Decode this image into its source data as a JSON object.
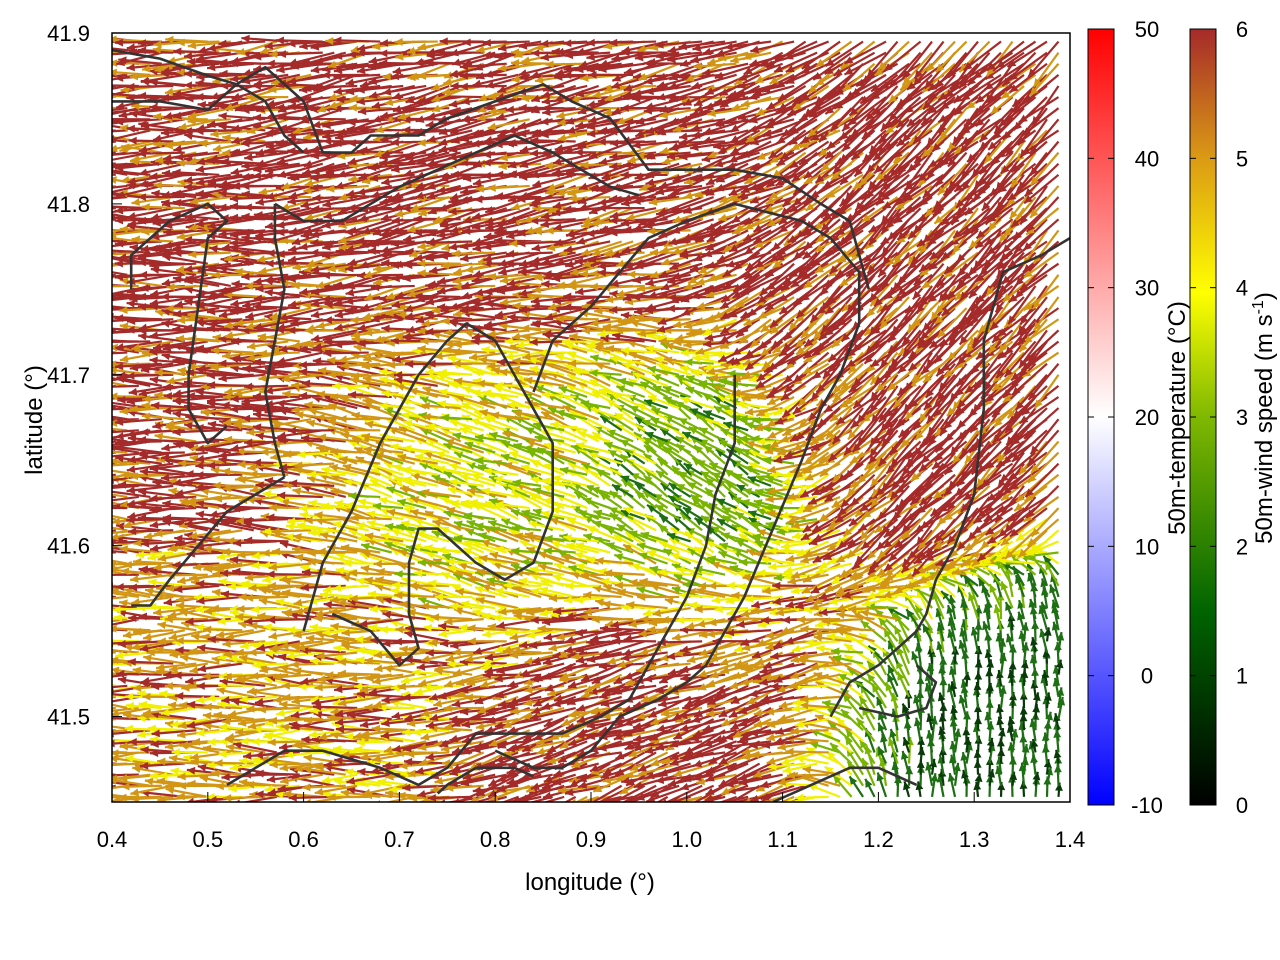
{
  "chart_data": {
    "type": "vector-field-map",
    "xlabel": "longitude (°)",
    "ylabel": "latitude (°)",
    "xlim": [
      0.4,
      1.4
    ],
    "ylim": [
      41.45,
      41.9
    ],
    "x_ticks": [
      0.4,
      0.5,
      0.6,
      0.7,
      0.8,
      0.9,
      1.0,
      1.1,
      1.2,
      1.3,
      1.4
    ],
    "x_tick_labels": [
      "0.4",
      "0.5",
      "0.6",
      "0.7",
      "0.8",
      "0.9",
      "1.0",
      "1.1",
      "1.2",
      "1.3",
      "1.4"
    ],
    "y_ticks": [
      41.5,
      41.6,
      41.7,
      41.8,
      41.9
    ],
    "y_tick_labels": [
      "41.5",
      "41.6",
      "41.7",
      "41.8",
      "41.9"
    ],
    "grid": false,
    "colorbars": [
      {
        "name": "temperature",
        "label": "50m-temperature (°C)",
        "range": [
          -10,
          50
        ],
        "ticks": [
          -10,
          0,
          10,
          20,
          30,
          40,
          50
        ],
        "tick_labels": [
          "-10",
          "0",
          "10",
          "20",
          "30",
          "40",
          "50"
        ],
        "colors": [
          "#0000ff",
          "#ffffff",
          "#ff0000"
        ]
      },
      {
        "name": "wind_speed",
        "label": "50m-wind speed (m s-1)",
        "range": [
          0,
          6
        ],
        "ticks": [
          0,
          1,
          2,
          3,
          4,
          5,
          6
        ],
        "tick_labels": [
          "0",
          "1",
          "2",
          "3",
          "4",
          "5",
          "6"
        ],
        "colors": [
          "#000000",
          "#006400",
          "#7fb800",
          "#ffff00",
          "#dc9c14",
          "#a52a2a"
        ]
      }
    ],
    "wind_field": {
      "speed_colors": {
        "calm": "#0a3a0a",
        "low": "#1e6e14",
        "mid_low": "#78b400",
        "mid": "#f0f000",
        "mid_high": "#d29614",
        "high": "#a52a2a"
      },
      "regions": [
        {
          "name": "west_plain",
          "lon": [
            0.4,
            0.6
          ],
          "lat": [
            41.62,
            41.8
          ],
          "dir_deg": 180,
          "speed": 6
        },
        {
          "name": "north_plateau",
          "lon": [
            0.6,
            1.05
          ],
          "lat": [
            41.72,
            41.85
          ],
          "dir_deg": 190,
          "speed": 6
        },
        {
          "name": "east_valley",
          "lon": [
            1.1,
            1.35
          ],
          "lat": [
            41.6,
            41.8
          ],
          "dir_deg": 225,
          "speed": 6
        },
        {
          "name": "central_basin",
          "lon": [
            0.7,
            1.0
          ],
          "lat": [
            41.58,
            41.7
          ],
          "dir_deg": 160,
          "speed": 4
        },
        {
          "name": "calm_center",
          "lon": [
            0.95,
            1.1
          ],
          "lat": [
            41.58,
            41.68
          ],
          "dir_deg": 130,
          "speed": 2
        },
        {
          "name": "southeast_calm",
          "lon": [
            1.22,
            1.4
          ],
          "lat": [
            41.45,
            41.55
          ],
          "dir_deg": 90,
          "speed": 1.5
        },
        {
          "name": "southwest_flow",
          "lon": [
            0.4,
            0.7
          ],
          "lat": [
            41.45,
            41.6
          ],
          "dir_deg": 180,
          "speed": 5
        },
        {
          "name": "south_ridge",
          "lon": [
            0.85,
            1.15
          ],
          "lat": [
            41.47,
            41.58
          ],
          "dir_deg": 200,
          "speed": 6
        }
      ]
    },
    "contours": [
      {
        "name": "contour-west",
        "points": [
          [
            0.42,
            41.75
          ],
          [
            0.42,
            41.77
          ],
          [
            0.46,
            41.79
          ],
          [
            0.5,
            41.8
          ],
          [
            0.52,
            41.79
          ],
          [
            0.5,
            41.78
          ],
          [
            0.49,
            41.74
          ],
          [
            0.48,
            41.7
          ],
          [
            0.48,
            41.68
          ],
          [
            0.5,
            41.66
          ],
          [
            0.52,
            41.67
          ]
        ]
      },
      {
        "name": "contour-northwest",
        "points": [
          [
            0.4,
            41.86
          ],
          [
            0.45,
            41.86
          ],
          [
            0.5,
            41.855
          ],
          [
            0.53,
            41.87
          ],
          [
            0.56,
            41.86
          ],
          [
            0.58,
            41.84
          ],
          [
            0.6,
            41.83
          ]
        ]
      },
      {
        "name": "contour-northwest-2",
        "points": [
          [
            0.4,
            41.89
          ],
          [
            0.45,
            41.885
          ],
          [
            0.5,
            41.875
          ],
          [
            0.53,
            41.87
          ],
          [
            0.56,
            41.88
          ],
          [
            0.6,
            41.86
          ],
          [
            0.62,
            41.83
          ],
          [
            0.65,
            41.83
          ],
          [
            0.67,
            41.84
          ],
          [
            0.7,
            41.84
          ],
          [
            0.72,
            41.84
          ],
          [
            0.75,
            41.85
          ],
          [
            0.8,
            41.86
          ],
          [
            0.85,
            41.87
          ],
          [
            0.88,
            41.86
          ],
          [
            0.92,
            41.85
          ],
          [
            0.96,
            41.82
          ],
          [
            1.0,
            41.82
          ],
          [
            1.05,
            41.82
          ],
          [
            1.1,
            41.815
          ],
          [
            1.14,
            41.8
          ],
          [
            1.17,
            41.79
          ],
          [
            1.19,
            41.75
          ]
        ]
      },
      {
        "name": "contour-inner",
        "points": [
          [
            0.57,
            41.8
          ],
          [
            0.6,
            41.79
          ],
          [
            0.64,
            41.79
          ],
          [
            0.67,
            41.8
          ],
          [
            0.7,
            41.81
          ],
          [
            0.74,
            41.82
          ],
          [
            0.78,
            41.83
          ],
          [
            0.82,
            41.84
          ],
          [
            0.86,
            41.83
          ],
          [
            0.89,
            41.82
          ],
          [
            0.92,
            41.81
          ],
          [
            0.95,
            41.805
          ]
        ]
      },
      {
        "name": "contour-ridge",
        "points": [
          [
            0.57,
            41.8
          ],
          [
            0.57,
            41.78
          ],
          [
            0.58,
            41.75
          ],
          [
            0.57,
            41.72
          ],
          [
            0.56,
            41.69
          ],
          [
            0.57,
            41.66
          ],
          [
            0.58,
            41.64
          ]
        ]
      },
      {
        "name": "contour-basin",
        "points": [
          [
            0.58,
            41.64
          ],
          [
            0.55,
            41.63
          ],
          [
            0.52,
            41.62
          ],
          [
            0.49,
            41.6
          ],
          [
            0.46,
            41.58
          ],
          [
            0.44,
            41.565
          ],
          [
            0.42,
            41.565
          ]
        ]
      },
      {
        "name": "contour-central",
        "points": [
          [
            0.6,
            41.55
          ],
          [
            0.62,
            41.59
          ],
          [
            0.65,
            41.62
          ],
          [
            0.68,
            41.66
          ],
          [
            0.72,
            41.7
          ],
          [
            0.75,
            41.72
          ],
          [
            0.77,
            41.73
          ],
          [
            0.8,
            41.72
          ],
          [
            0.83,
            41.69
          ],
          [
            0.86,
            41.66
          ],
          [
            0.86,
            41.62
          ],
          [
            0.84,
            41.59
          ],
          [
            0.81,
            41.58
          ],
          [
            0.78,
            41.59
          ],
          [
            0.74,
            41.61
          ],
          [
            0.72,
            41.61
          ],
          [
            0.71,
            41.59
          ],
          [
            0.71,
            41.56
          ],
          [
            0.72,
            41.54
          ],
          [
            0.7,
            41.53
          ],
          [
            0.67,
            41.55
          ],
          [
            0.63,
            41.56
          ]
        ]
      },
      {
        "name": "contour-east-lobe",
        "points": [
          [
            0.84,
            41.69
          ],
          [
            0.86,
            41.72
          ],
          [
            0.9,
            41.74
          ],
          [
            0.93,
            41.76
          ],
          [
            0.96,
            41.78
          ],
          [
            1.0,
            41.79
          ],
          [
            1.05,
            41.8
          ],
          [
            1.12,
            41.79
          ],
          [
            1.15,
            41.78
          ],
          [
            1.18,
            41.76
          ],
          [
            1.18,
            41.73
          ],
          [
            1.16,
            41.7
          ],
          [
            1.14,
            41.68
          ],
          [
            1.12,
            41.65
          ],
          [
            1.09,
            41.61
          ],
          [
            1.06,
            41.57
          ],
          [
            1.04,
            41.55
          ],
          [
            1.02,
            41.53
          ],
          [
            1.0,
            41.52
          ],
          [
            0.97,
            41.51
          ],
          [
            0.93,
            41.5
          ],
          [
            0.9,
            41.48
          ],
          [
            0.87,
            41.47
          ],
          [
            0.84,
            41.47
          ],
          [
            0.8,
            41.48
          ]
        ]
      },
      {
        "name": "contour-east-ridge",
        "points": [
          [
            1.05,
            41.7
          ],
          [
            1.05,
            41.66
          ],
          [
            1.03,
            41.63
          ],
          [
            1.02,
            41.6
          ],
          [
            1.0,
            41.57
          ],
          [
            0.98,
            41.55
          ],
          [
            0.96,
            41.53
          ],
          [
            0.94,
            41.51
          ],
          [
            0.91,
            41.5
          ],
          [
            0.87,
            41.49
          ],
          [
            0.82,
            41.49
          ],
          [
            0.78,
            41.49
          ],
          [
            0.75,
            41.47
          ],
          [
            0.72,
            41.46
          ],
          [
            0.68,
            41.47
          ],
          [
            0.65,
            41.475
          ],
          [
            0.62,
            41.48
          ],
          [
            0.58,
            41.48
          ],
          [
            0.55,
            41.47
          ],
          [
            0.52,
            41.46
          ]
        ]
      },
      {
        "name": "contour-far-east",
        "points": [
          [
            1.4,
            41.78
          ],
          [
            1.37,
            41.77
          ],
          [
            1.33,
            41.76
          ],
          [
            1.31,
            41.72
          ],
          [
            1.31,
            41.68
          ],
          [
            1.3,
            41.63
          ],
          [
            1.28,
            41.6
          ],
          [
            1.26,
            41.58
          ],
          [
            1.25,
            41.56
          ],
          [
            1.24,
            41.55
          ],
          [
            1.2,
            41.53
          ],
          [
            1.17,
            41.52
          ],
          [
            1.15,
            41.5
          ]
        ]
      },
      {
        "name": "contour-se-calm",
        "points": [
          [
            1.18,
            41.505
          ],
          [
            1.22,
            41.5
          ],
          [
            1.25,
            41.505
          ],
          [
            1.26,
            41.52
          ],
          [
            1.24,
            41.53
          ]
        ]
      },
      {
        "name": "contour-se-bottom",
        "points": [
          [
            1.09,
            41.45
          ],
          [
            1.13,
            41.46
          ],
          [
            1.17,
            41.47
          ],
          [
            1.2,
            41.47
          ],
          [
            1.24,
            41.46
          ]
        ]
      },
      {
        "name": "contour-sw-bottom",
        "points": [
          [
            0.74,
            41.455
          ],
          [
            0.75,
            41.46
          ],
          [
            0.78,
            41.47
          ],
          [
            0.82,
            41.47
          ],
          [
            0.84,
            41.465
          ]
        ]
      }
    ]
  }
}
